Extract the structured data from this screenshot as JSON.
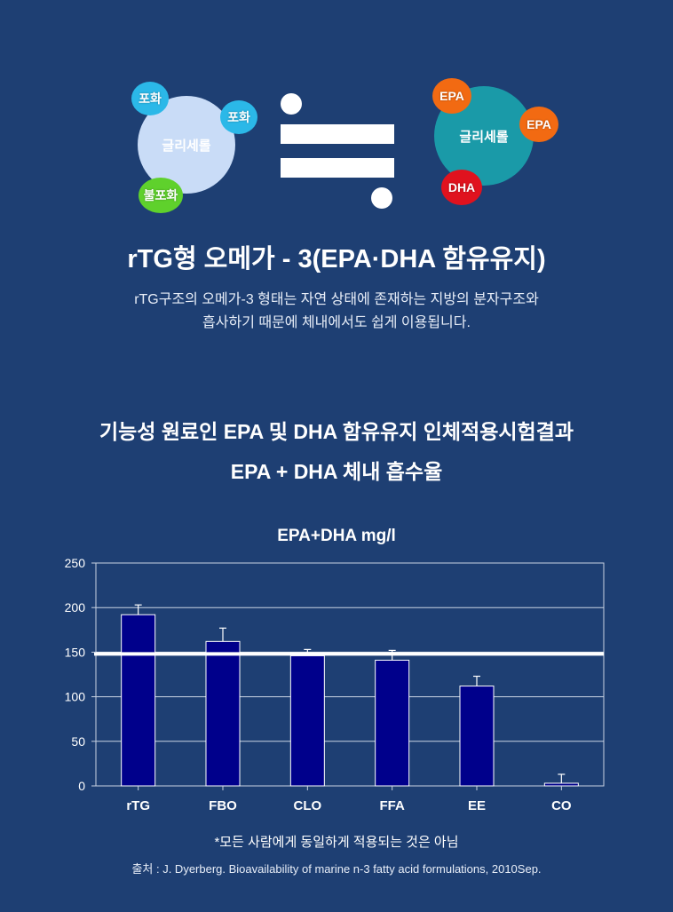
{
  "diagram": {
    "left_molecule": {
      "main_label": "글리세롤",
      "tags": [
        "포화",
        "포화",
        "불포화"
      ],
      "main_color": "#c9dcf7",
      "tag_colors": [
        "#2bb8e8",
        "#2bb8e8",
        "#5fd12c"
      ]
    },
    "right_molecule": {
      "main_label": "글리세롤",
      "tags": [
        "EPA",
        "EPA",
        "DHA"
      ],
      "main_color": "#1a9aa8",
      "tag_colors": [
        "#f26a12",
        "#f26a12",
        "#e0121e"
      ]
    },
    "symbol": "approximately-equal-icon"
  },
  "title": "rTG형 오메가 - 3(EPA·DHA 함유유지)",
  "description": [
    "rTG구조의 오메가-3 형태는 자연 상태에 존재하는 지방의 분자구조와",
    "흡사하기 때문에 체내에서도 쉽게 이용됩니다."
  ],
  "section_heading": [
    "기능성 원료인 EPA 및 DHA 함유유지 인체적용시험결과",
    "EPA + DHA 체내 흡수율"
  ],
  "chart_data": {
    "type": "bar",
    "title": "EPA+DHA mg/l",
    "categories": [
      "rTG",
      "FBO",
      "CLO",
      "FFA",
      "EE",
      "CO"
    ],
    "values": [
      192,
      162,
      146,
      141,
      112,
      3
    ],
    "error_upper": [
      203,
      177,
      153,
      152,
      123,
      13
    ],
    "ylim": [
      0,
      250
    ],
    "yticks": [
      0,
      50,
      100,
      150,
      200,
      250
    ],
    "reference_line": 148,
    "grid": true,
    "bar_color": "#00008b",
    "xlabel": "",
    "ylabel": ""
  },
  "footnote": "*모든 사람에게 동일하게 적용되는 것은 아님",
  "source": "출처 : J. Dyerberg. Bioavailability of marine n-3 fatty acid formulations, 2010Sep."
}
